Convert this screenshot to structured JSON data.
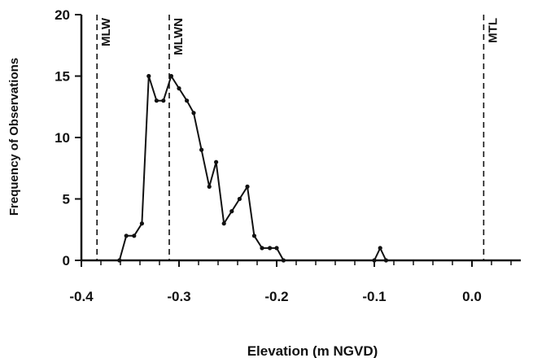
{
  "chart_data": {
    "type": "line",
    "title": "",
    "xlabel": "Elevation (m NGVD)",
    "ylabel": "Frequency of Observations",
    "xlim": [
      -0.4,
      0.05
    ],
    "ylim": [
      0,
      20
    ],
    "x_ticks": [
      {
        "value": -0.4,
        "label": "-0.4"
      },
      {
        "value": -0.3,
        "label": "-0.3"
      },
      {
        "value": -0.2,
        "label": "-0.2"
      },
      {
        "value": -0.1,
        "label": "-0.1"
      },
      {
        "value": 0.0,
        "label": "0.0"
      }
    ],
    "y_ticks": [
      {
        "value": 0,
        "label": "0"
      },
      {
        "value": 5,
        "label": "5"
      },
      {
        "value": 10,
        "label": "10"
      },
      {
        "value": 15,
        "label": "15"
      },
      {
        "value": 20,
        "label": "20"
      }
    ],
    "grid": false,
    "reference_lines": [
      {
        "label": "MLW",
        "x": -0.384
      },
      {
        "label": "MLWN",
        "x": -0.31
      },
      {
        "label": "MTL",
        "x": 0.012
      }
    ],
    "series": [
      {
        "segments": [
          [
            {
              "x": -0.361,
              "y": 0
            },
            {
              "x": -0.354,
              "y": 2
            },
            {
              "x": -0.346,
              "y": 2
            },
            {
              "x": -0.338,
              "y": 3
            },
            {
              "x": -0.331,
              "y": 15
            },
            {
              "x": -0.323,
              "y": 13
            },
            {
              "x": -0.316,
              "y": 13
            },
            {
              "x": -0.308,
              "y": 15
            },
            {
              "x": -0.3,
              "y": 14
            },
            {
              "x": -0.292,
              "y": 13
            },
            {
              "x": -0.285,
              "y": 12
            },
            {
              "x": -0.277,
              "y": 9
            },
            {
              "x": -0.269,
              "y": 6
            },
            {
              "x": -0.262,
              "y": 8
            },
            {
              "x": -0.254,
              "y": 3
            },
            {
              "x": -0.246,
              "y": 4
            },
            {
              "x": -0.238,
              "y": 5
            },
            {
              "x": -0.23,
              "y": 6
            },
            {
              "x": -0.223,
              "y": 2
            },
            {
              "x": -0.215,
              "y": 1
            },
            {
              "x": -0.207,
              "y": 1
            },
            {
              "x": -0.2,
              "y": 1
            },
            {
              "x": -0.193,
              "y": 0
            }
          ],
          [
            {
              "x": -0.1,
              "y": 0
            },
            {
              "x": -0.094,
              "y": 1
            },
            {
              "x": -0.088,
              "y": 0
            }
          ]
        ]
      }
    ]
  }
}
